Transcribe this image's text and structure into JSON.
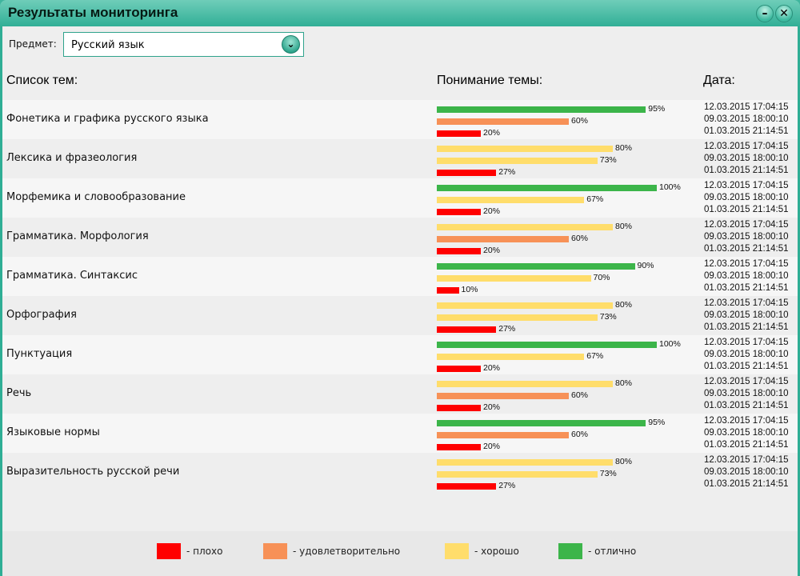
{
  "window": {
    "title": "Результаты мониторинга",
    "minimize": "–",
    "close": "✕"
  },
  "subject": {
    "label": "Предмет:",
    "value": "Русский язык",
    "dropdown_icon": "chevron-down-icon"
  },
  "headers": {
    "topics": "Список тем:",
    "understanding": "Понимание темы:",
    "date": "Дата:"
  },
  "colors": {
    "bad": "#ff0000",
    "satisfactory": "#f79157",
    "good": "#ffdd6b",
    "excellent": "#3cb54a"
  },
  "dates": [
    "12.03.2015 17:04:15",
    "09.03.2015 18:00:10",
    "01.03.2015 21:14:51"
  ],
  "topics": [
    {
      "name": "Фонетика и графика русского языка",
      "results": [
        {
          "value": 95,
          "label": "95%",
          "level": "excellent"
        },
        {
          "value": 60,
          "label": "60%",
          "level": "satisfactory"
        },
        {
          "value": 20,
          "label": "20%",
          "level": "bad"
        }
      ]
    },
    {
      "name": "Лексика и фразеология",
      "results": [
        {
          "value": 80,
          "label": "80%",
          "level": "good"
        },
        {
          "value": 73,
          "label": "73%",
          "level": "good"
        },
        {
          "value": 27,
          "label": "27%",
          "level": "bad"
        }
      ]
    },
    {
      "name": "Морфемика и словообразование",
      "results": [
        {
          "value": 100,
          "label": "100%",
          "level": "excellent"
        },
        {
          "value": 67,
          "label": "67%",
          "level": "good"
        },
        {
          "value": 20,
          "label": "20%",
          "level": "bad"
        }
      ]
    },
    {
      "name": "Грамматика. Морфология",
      "results": [
        {
          "value": 80,
          "label": "80%",
          "level": "good"
        },
        {
          "value": 60,
          "label": "60%",
          "level": "satisfactory"
        },
        {
          "value": 20,
          "label": "20%",
          "level": "bad"
        }
      ]
    },
    {
      "name": "Грамматика. Синтаксис",
      "results": [
        {
          "value": 90,
          "label": "90%",
          "level": "excellent"
        },
        {
          "value": 70,
          "label": "70%",
          "level": "good"
        },
        {
          "value": 10,
          "label": "10%",
          "level": "bad"
        }
      ]
    },
    {
      "name": "Орфография",
      "results": [
        {
          "value": 80,
          "label": "80%",
          "level": "good"
        },
        {
          "value": 73,
          "label": "73%",
          "level": "good"
        },
        {
          "value": 27,
          "label": "27%",
          "level": "bad"
        }
      ]
    },
    {
      "name": "Пунктуация",
      "results": [
        {
          "value": 100,
          "label": "100%",
          "level": "excellent"
        },
        {
          "value": 67,
          "label": "67%",
          "level": "good"
        },
        {
          "value": 20,
          "label": "20%",
          "level": "bad"
        }
      ]
    },
    {
      "name": "Речь",
      "results": [
        {
          "value": 80,
          "label": "80%",
          "level": "good"
        },
        {
          "value": 60,
          "label": "60%",
          "level": "satisfactory"
        },
        {
          "value": 20,
          "label": "20%",
          "level": "bad"
        }
      ]
    },
    {
      "name": "Языковые нормы",
      "results": [
        {
          "value": 95,
          "label": "95%",
          "level": "excellent"
        },
        {
          "value": 60,
          "label": "60%",
          "level": "satisfactory"
        },
        {
          "value": 20,
          "label": "20%",
          "level": "bad"
        }
      ]
    },
    {
      "name": "Выразительность русской речи",
      "results": [
        {
          "value": 80,
          "label": "80%",
          "level": "good"
        },
        {
          "value": 73,
          "label": "73%",
          "level": "good"
        },
        {
          "value": 27,
          "label": "27%",
          "level": "bad"
        }
      ]
    }
  ],
  "legend": [
    {
      "level": "bad",
      "label": "- плохо"
    },
    {
      "level": "satisfactory",
      "label": "- удовлетворительно"
    },
    {
      "level": "good",
      "label": "- хорошо"
    },
    {
      "level": "excellent",
      "label": "- отлично"
    }
  ]
}
